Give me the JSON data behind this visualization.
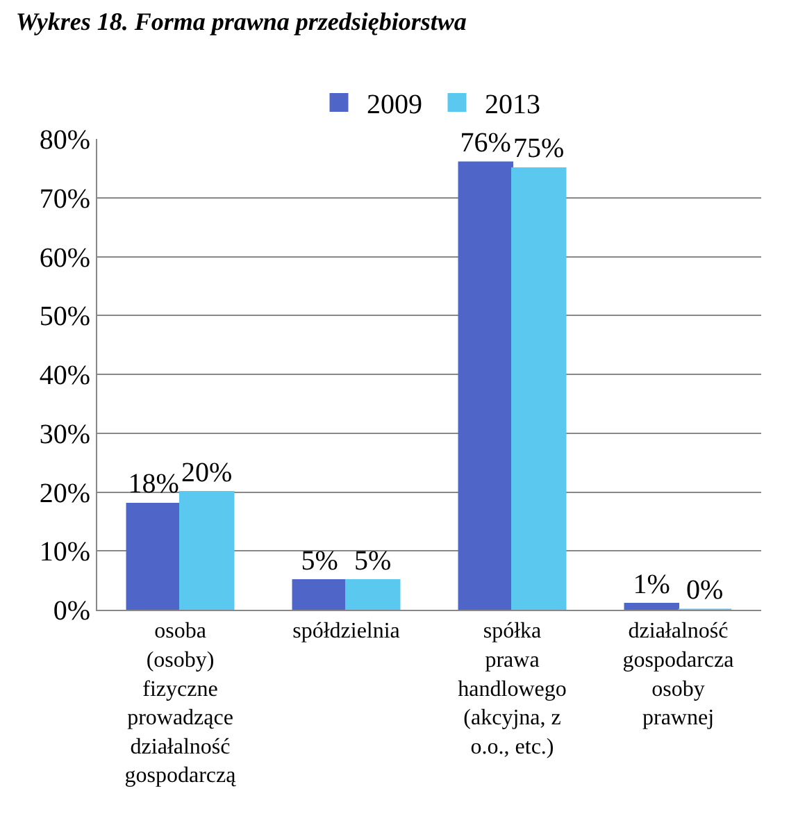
{
  "chart_data": {
    "type": "bar",
    "title": "Wykres 18. Forma prawna przedsiębiorstwa",
    "categories": [
      "osoba (osoby) fizyczne prowadzące działalność gospodarczą",
      "spółdzielnia",
      "spółka prawa handlowego (akcyjna, z o.o., etc.)",
      "działalność gospodarcza osoby prawnej"
    ],
    "series": [
      {
        "name": "2009",
        "color": "#4f66c8",
        "values": [
          18,
          5,
          76,
          1
        ],
        "value_labels": [
          "18%",
          "5%",
          "76%",
          "1%"
        ]
      },
      {
        "name": "2013",
        "color": "#5bc8f0",
        "values": [
          20,
          5,
          75,
          0
        ],
        "value_labels": [
          "20%",
          "5%",
          "75%",
          "0%"
        ]
      }
    ],
    "ylim": [
      0,
      80
    ],
    "yticks": [
      {
        "value": 0,
        "label": "0%"
      },
      {
        "value": 10,
        "label": "10%"
      },
      {
        "value": 20,
        "label": "20%"
      },
      {
        "value": 30,
        "label": "30%"
      },
      {
        "value": 40,
        "label": "40%"
      },
      {
        "value": 50,
        "label": "50%"
      },
      {
        "value": 60,
        "label": "60%"
      },
      {
        "value": 70,
        "label": "70%"
      },
      {
        "value": 80,
        "label": "80%"
      }
    ],
    "grid": "y",
    "legend": "top"
  }
}
